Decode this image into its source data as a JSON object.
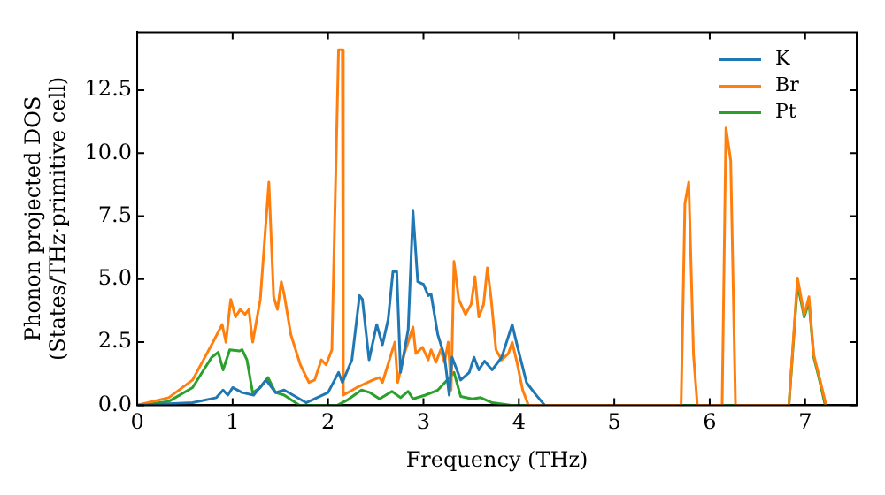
{
  "chart_data": {
    "type": "line",
    "xlabel": "Frequency (THz)",
    "ylabel": "Phonon projected DOS\n(States/THz·primitive cell)",
    "xlim": [
      0,
      7.54
    ],
    "ylim": [
      0,
      14.8
    ],
    "xticks": [
      0,
      1,
      2,
      3,
      4,
      5,
      6,
      7
    ],
    "yticks": [
      {
        "value": 0,
        "label": "0.0"
      },
      {
        "value": 2.5,
        "label": "2.5"
      },
      {
        "value": 5,
        "label": "5.0"
      },
      {
        "value": 7.5,
        "label": "7.5"
      },
      {
        "value": 10,
        "label": "10.0"
      },
      {
        "value": 12.5,
        "label": "12.5"
      }
    ],
    "legend": "top right",
    "grid": false,
    "marker": "none",
    "line_style": "solid",
    "series": [
      {
        "name": "K",
        "color": "#1f77b4",
        "x": [
          0,
          0.58,
          0.83,
          0.9,
          0.95,
          1.0,
          1.1,
          1.22,
          1.35,
          1.45,
          1.54,
          1.77,
          2.0,
          2.11,
          2.15,
          2.25,
          2.33,
          2.36,
          2.43,
          2.51,
          2.57,
          2.63,
          2.68,
          2.72,
          2.76,
          2.84,
          2.89,
          2.94,
          3.0,
          3.05,
          3.08,
          3.15,
          3.22,
          3.27,
          3.3,
          3.39,
          3.48,
          3.53,
          3.58,
          3.64,
          3.72,
          3.82,
          3.93,
          3.98,
          4.08,
          4.16,
          4.27
        ],
        "values": [
          0,
          0.1,
          0.3,
          0.6,
          0.4,
          0.7,
          0.5,
          0.4,
          1.0,
          0.5,
          0.6,
          0.1,
          0.5,
          1.3,
          0.9,
          1.8,
          4.35,
          4.2,
          1.8,
          3.2,
          2.4,
          3.4,
          5.3,
          5.3,
          1.3,
          3.0,
          7.7,
          4.9,
          4.8,
          4.35,
          4.4,
          2.8,
          1.95,
          0.4,
          1.9,
          1.0,
          1.3,
          1.9,
          1.4,
          1.75,
          1.4,
          1.9,
          3.2,
          2.4,
          0.9,
          0.5,
          0
        ]
      },
      {
        "name": "Br",
        "color": "#ff7f0e",
        "x": [
          0,
          0.33,
          0.58,
          0.78,
          0.89,
          0.93,
          0.98,
          1.03,
          1.08,
          1.13,
          1.17,
          1.21,
          1.29,
          1.38,
          1.43,
          1.47,
          1.51,
          1.54,
          1.61,
          1.71,
          1.8,
          1.86,
          1.93,
          1.98,
          2.04,
          2.11,
          2.15,
          2.16,
          2.3,
          2.47,
          2.54,
          2.57,
          2.7,
          2.73,
          2.8,
          2.89,
          2.92,
          2.99,
          3.05,
          3.08,
          3.13,
          3.18,
          3.22,
          3.26,
          3.29,
          3.32,
          3.37,
          3.44,
          3.5,
          3.54,
          3.58,
          3.63,
          3.67,
          3.71,
          3.76,
          3.82,
          3.89,
          3.93,
          3.98,
          4.04,
          4.1,
          5.7,
          5.74,
          5.78,
          5.83,
          5.87,
          6.13,
          6.17,
          6.22,
          6.27,
          6.83,
          6.92,
          6.99,
          7.04,
          7.09,
          7.15,
          7.22
        ],
        "values": [
          0,
          0.3,
          1.0,
          2.4,
          3.2,
          2.5,
          4.2,
          3.5,
          3.8,
          3.6,
          3.8,
          2.5,
          4.2,
          8.85,
          4.3,
          3.8,
          4.9,
          4.4,
          2.8,
          1.6,
          0.9,
          1.0,
          1.8,
          1.6,
          2.2,
          14.1,
          14.1,
          0.4,
          0.7,
          1.0,
          1.1,
          0.9,
          2.5,
          0.9,
          2.05,
          3.1,
          2.05,
          2.3,
          1.8,
          2.2,
          1.7,
          2.2,
          1.7,
          2.5,
          0.6,
          5.7,
          4.2,
          3.6,
          4.0,
          5.1,
          3.5,
          4.0,
          5.45,
          4.2,
          2.2,
          1.8,
          2.05,
          2.5,
          1.7,
          0.6,
          0,
          0,
          8.0,
          8.85,
          2.0,
          0,
          0,
          11.0,
          9.7,
          0,
          0,
          5.05,
          3.6,
          4.3,
          2.0,
          1.1,
          0
        ]
      },
      {
        "name": "Pt",
        "color": "#2ca02c",
        "x": [
          0,
          0.33,
          0.58,
          0.78,
          0.85,
          0.9,
          0.97,
          1.07,
          1.1,
          1.15,
          1.21,
          1.29,
          1.37,
          1.45,
          1.54,
          1.7,
          2.1,
          2.2,
          2.35,
          2.44,
          2.54,
          2.67,
          2.76,
          2.84,
          2.89,
          3.02,
          3.15,
          3.25,
          3.32,
          3.39,
          3.51,
          3.6,
          3.72,
          3.92,
          6.83,
          6.92,
          6.99,
          7.04,
          7.09,
          7.15,
          7.21
        ],
        "values": [
          0,
          0.15,
          0.7,
          1.9,
          2.1,
          1.4,
          2.2,
          2.15,
          2.2,
          1.8,
          0.5,
          0.7,
          1.1,
          0.5,
          0.4,
          0,
          0,
          0.2,
          0.6,
          0.5,
          0.25,
          0.55,
          0.3,
          0.55,
          0.25,
          0.4,
          0.6,
          1.0,
          1.3,
          0.35,
          0.25,
          0.3,
          0.1,
          0,
          0,
          4.8,
          3.5,
          4.1,
          1.9,
          1.0,
          0
        ]
      }
    ]
  }
}
